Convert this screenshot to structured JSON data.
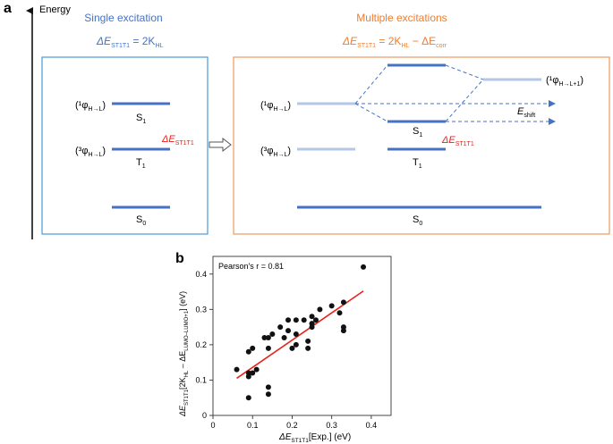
{
  "panel_a": {
    "label": "a",
    "energy_axis": "Energy",
    "single": {
      "title": "Single excitation",
      "eq_lhs": "ΔE",
      "eq_lhs_sub": "ST1T1",
      "eq_mid": " = 2K",
      "eq_mid_sub": "HL",
      "s1_state": "(¹φ",
      "s1_state_sub": "H→L",
      "t1_state": "(³φ",
      "t1_state_sub": "H→L",
      "close": ")",
      "s1": "S",
      "s1_sub": "1",
      "t1": "T",
      "t1_sub": "1",
      "s0": "S",
      "s0_sub": "0",
      "gap": "ΔE",
      "gap_sub": "ST1T1"
    },
    "multiple": {
      "title": "Multiple excitations",
      "eq_lhs": "ΔE",
      "eq_lhs_sub": "ST1T1",
      "eq_mid": " = 2K",
      "eq_mid_sub": "HL",
      "eq_minus": " − ΔE",
      "eq_minus_sub": "corr",
      "s1_state": "(¹φ",
      "s1_state_sub": "H→L",
      "t1_state": "(³φ",
      "t1_state_sub": "H→L",
      "upper_state": "(¹φ",
      "upper_state_sub": "H→L+1",
      "close": ")",
      "shift": "E",
      "shift_sub": "shift",
      "s1": "S",
      "s1_sub": "1",
      "t1": "T",
      "t1_sub": "1",
      "s0": "S",
      "s0_sub": "0",
      "gap": "ΔE",
      "gap_sub": "ST1T1"
    },
    "colors": {
      "blue": "#4472c4",
      "light_blue": "#b4c7e7",
      "orange": "#ed7d31",
      "red": "#e8221a"
    }
  },
  "panel_b": {
    "label": "b",
    "pearson": "Pearson's r = 0.81"
  },
  "chart_data": {
    "type": "scatter",
    "xlabel": "ΔE_ST1T1[Exp.] (eV)",
    "ylabel": "ΔE_ST1T1[2K_HL – ΔE_LUMO–LUMO+1] (eV)",
    "xlabel_main": "ΔE",
    "xlabel_sub": "ST1T1",
    "xlabel_tail": "[Exp.] (eV)",
    "ylabel_main": "ΔE",
    "ylabel_sub1": "ST1T1",
    "ylabel_mid": "[2K",
    "ylabel_sub2": "HL",
    "ylabel_mid2": " – ΔE",
    "ylabel_sub3": "LUMO–LUMO+1",
    "ylabel_tail": "] (eV)",
    "xlim": [
      0,
      0.45
    ],
    "ylim": [
      0,
      0.45
    ],
    "xticks": [
      "0",
      "0.1",
      "0.2",
      "0.3",
      "0.4"
    ],
    "yticks": [
      "0",
      "0.1",
      "0.2",
      "0.3",
      "0.4"
    ],
    "fit_line": {
      "x": [
        0.06,
        0.38
      ],
      "y": [
        0.105,
        0.352
      ],
      "color": "#e8221a"
    },
    "points": [
      [
        0.06,
        0.13
      ],
      [
        0.09,
        0.05
      ],
      [
        0.09,
        0.11
      ],
      [
        0.09,
        0.12
      ],
      [
        0.09,
        0.18
      ],
      [
        0.1,
        0.12
      ],
      [
        0.1,
        0.19
      ],
      [
        0.11,
        0.13
      ],
      [
        0.13,
        0.22
      ],
      [
        0.14,
        0.06
      ],
      [
        0.14,
        0.08
      ],
      [
        0.14,
        0.19
      ],
      [
        0.14,
        0.22
      ],
      [
        0.15,
        0.23
      ],
      [
        0.17,
        0.25
      ],
      [
        0.18,
        0.22
      ],
      [
        0.19,
        0.24
      ],
      [
        0.19,
        0.27
      ],
      [
        0.2,
        0.19
      ],
      [
        0.21,
        0.2
      ],
      [
        0.21,
        0.23
      ],
      [
        0.21,
        0.27
      ],
      [
        0.23,
        0.27
      ],
      [
        0.24,
        0.19
      ],
      [
        0.24,
        0.21
      ],
      [
        0.25,
        0.25
      ],
      [
        0.25,
        0.26
      ],
      [
        0.25,
        0.28
      ],
      [
        0.26,
        0.27
      ],
      [
        0.27,
        0.3
      ],
      [
        0.3,
        0.31
      ],
      [
        0.32,
        0.29
      ],
      [
        0.33,
        0.24
      ],
      [
        0.33,
        0.25
      ],
      [
        0.33,
        0.32
      ],
      [
        0.38,
        0.42
      ]
    ],
    "grid": false,
    "legend": "none"
  }
}
